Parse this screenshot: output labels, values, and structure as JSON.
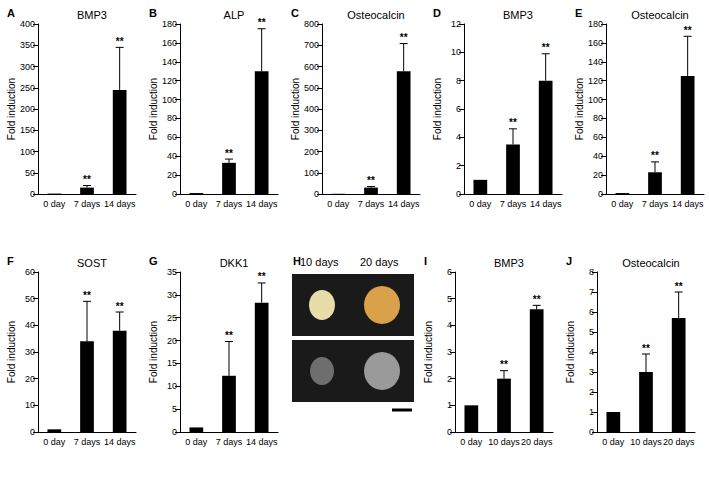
{
  "chart_data": [
    {
      "panel": "A",
      "type": "bar",
      "title": "BMP3",
      "y_label": "Fold induction",
      "categories": [
        "0 day",
        "7 days",
        "14 days"
      ],
      "values": [
        1,
        15,
        245
      ],
      "errors": [
        0,
        5,
        100
      ],
      "color": "#000000",
      "ylim": [
        0,
        400
      ],
      "yticks": [
        0,
        50,
        100,
        150,
        200,
        250,
        300,
        350,
        400
      ],
      "grid": false,
      "annotations": [
        {
          "category": "7 days",
          "text": "**"
        },
        {
          "category": "14 days",
          "text": "**"
        }
      ]
    },
    {
      "panel": "B",
      "type": "bar",
      "title": "ALP",
      "y_label": "Fold induction",
      "categories": [
        "0 day",
        "7 days",
        "14 days"
      ],
      "values": [
        1,
        33,
        130
      ],
      "errors": [
        0,
        4,
        45
      ],
      "color": "#000000",
      "ylim": [
        0,
        180
      ],
      "yticks": [
        0,
        20,
        40,
        60,
        80,
        100,
        120,
        140,
        160,
        180
      ],
      "grid": false,
      "annotations": [
        {
          "category": "7 days",
          "text": "**"
        },
        {
          "category": "14 days",
          "text": "**"
        }
      ]
    },
    {
      "panel": "C",
      "type": "bar",
      "title": "Osteocalcin",
      "y_label": "Fold induction",
      "categories": [
        "0 day",
        "7 days",
        "14 days"
      ],
      "values": [
        1,
        30,
        578
      ],
      "errors": [
        0,
        5,
        130
      ],
      "color": "#000000",
      "ylim": [
        0,
        800
      ],
      "yticks": [
        0,
        100,
        200,
        300,
        400,
        500,
        600,
        700,
        800
      ],
      "grid": false,
      "annotations": [
        {
          "category": "7 days",
          "text": "**"
        },
        {
          "category": "14 days",
          "text": "**"
        }
      ]
    },
    {
      "panel": "D",
      "type": "bar",
      "title": "BMP3",
      "y_label": "Fold induction",
      "categories": [
        "0 day",
        "7 days",
        "14 days"
      ],
      "values": [
        1,
        3.5,
        8
      ],
      "errors": [
        0,
        1.1,
        1.9
      ],
      "color": "#000000",
      "ylim": [
        0,
        12
      ],
      "yticks": [
        0,
        2,
        4,
        6,
        8,
        10,
        12
      ],
      "grid": false,
      "annotations": [
        {
          "category": "7 days",
          "text": "**"
        },
        {
          "category": "14 days",
          "text": "**"
        }
      ]
    },
    {
      "panel": "E",
      "type": "bar",
      "title": "Osteocalcin",
      "y_label": "Fold induction",
      "categories": [
        "0 day",
        "7 days",
        "14 days"
      ],
      "values": [
        1,
        23,
        125
      ],
      "errors": [
        0,
        11,
        42
      ],
      "color": "#000000",
      "ylim": [
        0,
        180
      ],
      "yticks": [
        0,
        20,
        40,
        60,
        80,
        100,
        120,
        140,
        160,
        180
      ],
      "grid": false,
      "annotations": [
        {
          "category": "7 days",
          "text": "**"
        },
        {
          "category": "14 days",
          "text": "**"
        }
      ]
    },
    {
      "panel": "F",
      "type": "bar",
      "title": "SOST",
      "y_label": "Fold induction",
      "categories": [
        "0 day",
        "7 days",
        "14 days"
      ],
      "values": [
        1,
        34,
        38
      ],
      "errors": [
        0,
        15,
        7
      ],
      "color": "#000000",
      "ylim": [
        0,
        60
      ],
      "yticks": [
        0,
        10,
        20,
        30,
        40,
        50,
        60
      ],
      "grid": false,
      "annotations": [
        {
          "category": "7 days",
          "text": "**"
        },
        {
          "category": "14 days",
          "text": "**"
        }
      ]
    },
    {
      "panel": "G",
      "type": "bar",
      "title": "DKK1",
      "y_label": "Fold induction",
      "categories": [
        "0 day",
        "7 days",
        "14 days"
      ],
      "values": [
        1,
        12.3,
        28.3
      ],
      "errors": [
        0,
        7.5,
        4.3
      ],
      "color": "#000000",
      "ylim": [
        0,
        35
      ],
      "yticks": [
        0,
        5,
        10,
        15,
        20,
        25,
        30,
        35
      ],
      "grid": false,
      "annotations": [
        {
          "category": "7 days",
          "text": "**"
        },
        {
          "category": "14 days",
          "text": "**"
        }
      ]
    },
    {
      "panel": "I",
      "type": "bar",
      "title": "BMP3",
      "y_label": "Fold induction",
      "categories": [
        "0 day",
        "10 days",
        "20 days"
      ],
      "values": [
        1,
        2,
        4.6
      ],
      "errors": [
        0,
        0.3,
        0.15
      ],
      "color": "#000000",
      "ylim": [
        0,
        6
      ],
      "yticks": [
        0,
        1,
        2,
        3,
        4,
        5,
        6
      ],
      "grid": false,
      "annotations": [
        {
          "category": "10 days",
          "text": "**"
        },
        {
          "category": "20 days",
          "text": "**"
        }
      ]
    },
    {
      "panel": "J",
      "type": "bar",
      "title": "Osteocalcin",
      "y_label": "Fold induction",
      "categories": [
        "0 day",
        "10 days",
        "20 days"
      ],
      "values": [
        1,
        3,
        5.7
      ],
      "errors": [
        0,
        0.9,
        1.3
      ],
      "color": "#000000",
      "ylim": [
        0,
        8
      ],
      "yticks": [
        0,
        1,
        2,
        3,
        4,
        5,
        6,
        7,
        8
      ],
      "grid": false,
      "annotations": [
        {
          "category": "10 days",
          "text": "**"
        },
        {
          "category": "20 days",
          "text": "**"
        }
      ]
    }
  ],
  "image_panel": {
    "panel": "H",
    "labels": [
      "10 days",
      "20 days"
    ]
  }
}
